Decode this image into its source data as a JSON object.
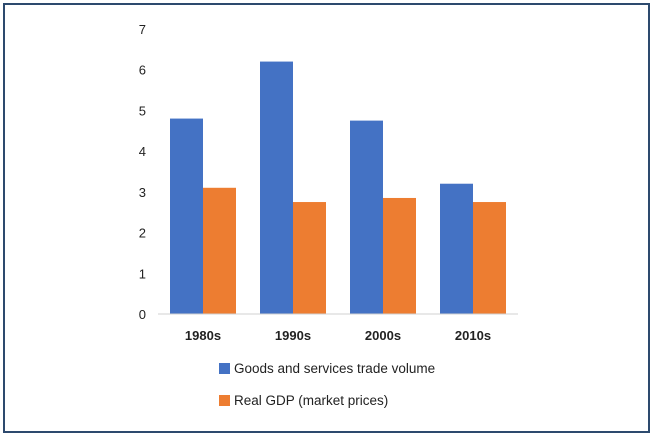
{
  "chart_data": {
    "type": "bar",
    "categories": [
      "1980s",
      "1990s",
      "2000s",
      "2010s"
    ],
    "series": [
      {
        "name": "Goods and services trade volume",
        "color": "#4472c4",
        "values": [
          4.8,
          6.2,
          4.75,
          3.2
        ]
      },
      {
        "name": "Real GDP (market prices)",
        "color": "#ed7d31",
        "values": [
          3.1,
          2.75,
          2.85,
          2.75
        ]
      }
    ],
    "yticks": [
      "0",
      "1",
      "2",
      "3",
      "4",
      "5",
      "6",
      "7"
    ],
    "ylim": [
      0,
      7
    ],
    "legend_position": "bottom",
    "grid": false
  }
}
